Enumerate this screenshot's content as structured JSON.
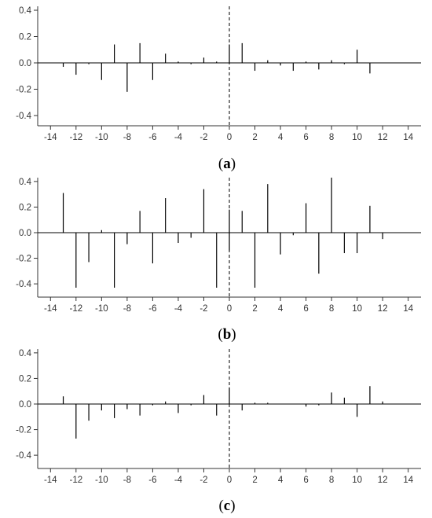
{
  "chart_data": [
    {
      "type": "bar",
      "caption": "(a)",
      "caption_letter": "a",
      "x": [
        -13,
        -12,
        -11,
        -10,
        -9,
        -8,
        -7,
        -6,
        -5,
        -4,
        -3,
        -2,
        -1,
        0,
        1,
        2,
        3,
        4,
        5,
        6,
        7,
        8,
        9,
        10,
        11
      ],
      "values": [
        -0.03,
        -0.09,
        -0.01,
        -0.13,
        0.14,
        -0.22,
        0.15,
        -0.13,
        0.07,
        0.01,
        -0.01,
        0.04,
        0.01,
        0.14,
        0.15,
        -0.06,
        0.02,
        -0.02,
        -0.06,
        0.01,
        -0.05,
        0.02,
        -0.01,
        0.1,
        -0.08
      ],
      "xlim": [
        -15,
        15
      ],
      "ylim": [
        -0.43,
        0.43
      ],
      "xticks": [
        -14,
        -12,
        -10,
        -8,
        -6,
        -4,
        -2,
        0,
        2,
        4,
        6,
        8,
        10,
        12,
        14
      ],
      "yticks": [
        -0.4,
        -0.2,
        0.0,
        0.2,
        0.4
      ],
      "ytick_labels": [
        "-0.4",
        "-0.2",
        "0.0",
        "0.2",
        "0.4"
      ],
      "zero_line": true,
      "lag0_dashed_line": true,
      "grid": false,
      "bar_color": "#000000"
    },
    {
      "type": "bar",
      "caption": "(b)",
      "caption_letter": "b",
      "x": [
        -13,
        -12,
        -11,
        -10,
        -9,
        -8,
        -7,
        -6,
        -5,
        -4,
        -3,
        -2,
        -1,
        0,
        1,
        2,
        3,
        4,
        5,
        6,
        7,
        8,
        9,
        10,
        11,
        12
      ],
      "values": [
        0.31,
        -0.43,
        -0.23,
        0.02,
        -0.43,
        -0.09,
        0.17,
        -0.24,
        0.27,
        -0.08,
        -0.04,
        0.34,
        -0.43,
        0.18,
        0.17,
        -0.43,
        0.38,
        -0.17,
        -0.02,
        0.23,
        -0.32,
        0.43,
        -0.16,
        -0.16,
        0.21,
        -0.05
      ],
      "lag0_negative_value": -0.14,
      "xlim": [
        -15,
        15
      ],
      "ylim": [
        -0.43,
        0.43
      ],
      "xticks": [
        -14,
        -12,
        -10,
        -8,
        -6,
        -4,
        -2,
        0,
        2,
        4,
        6,
        8,
        10,
        12,
        14
      ],
      "yticks": [
        -0.4,
        -0.2,
        0.0,
        0.2,
        0.4
      ],
      "ytick_labels": [
        "-0.4",
        "-0.2",
        "0.0",
        "0.2",
        "0.4"
      ],
      "zero_line": true,
      "lag0_dashed_line": true,
      "grid": false,
      "bar_color": "#000000"
    },
    {
      "type": "bar",
      "caption": "(c)",
      "caption_letter": "c",
      "x": [
        -13,
        -12,
        -11,
        -10,
        -9,
        -8,
        -7,
        -6,
        -5,
        -4,
        -3,
        -2,
        -1,
        0,
        1,
        2,
        3,
        4,
        5,
        6,
        7,
        8,
        9,
        10,
        11,
        12
      ],
      "values": [
        0.06,
        -0.27,
        -0.13,
        -0.05,
        -0.11,
        -0.04,
        -0.09,
        -0.01,
        0.02,
        -0.07,
        -0.01,
        0.07,
        -0.09,
        0.13,
        -0.05,
        0.01,
        0.01,
        0.0,
        0.0,
        -0.02,
        -0.01,
        0.09,
        0.05,
        -0.1,
        0.14,
        0.02
      ],
      "xlim": [
        -15,
        15
      ],
      "ylim": [
        -0.43,
        0.43
      ],
      "xticks": [
        -14,
        -12,
        -10,
        -8,
        -6,
        -4,
        -2,
        0,
        2,
        4,
        6,
        8,
        10,
        12,
        14
      ],
      "yticks": [
        -0.4,
        -0.2,
        0.0,
        0.2,
        0.4
      ],
      "ytick_labels": [
        "-0.4",
        "-0.2",
        "0.0",
        "0.2",
        "0.4"
      ],
      "zero_line": true,
      "lag0_dashed_line": true,
      "grid": false,
      "bar_color": "#000000"
    }
  ]
}
